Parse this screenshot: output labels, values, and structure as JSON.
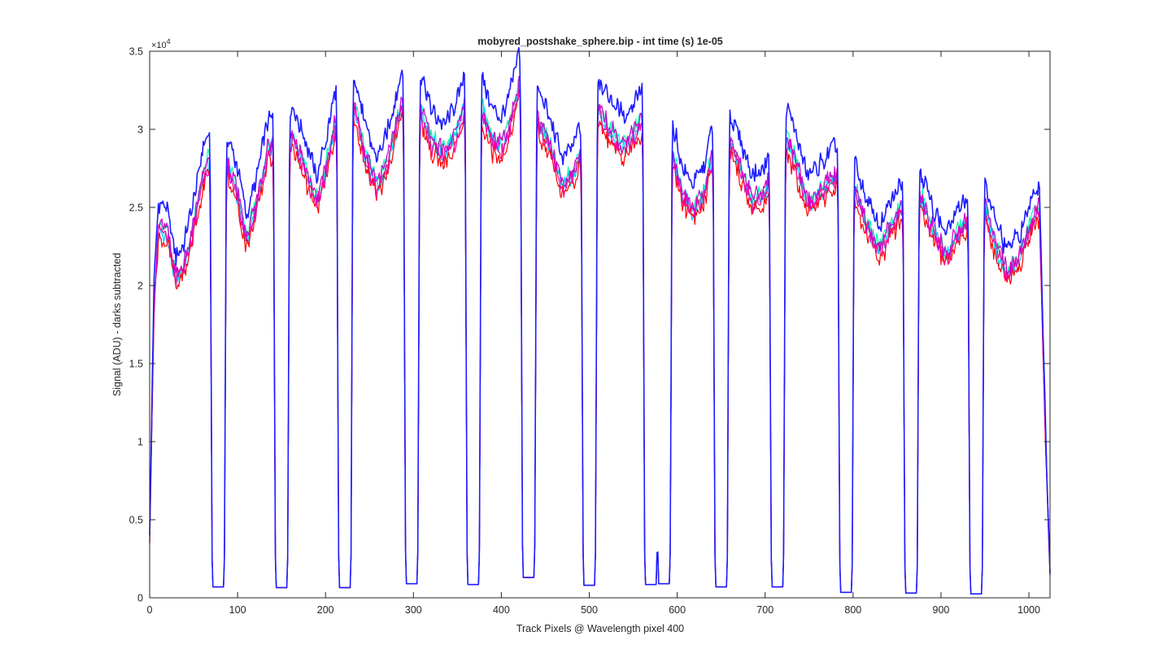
{
  "chart_data": {
    "type": "line",
    "title": "mobyred_postshake_sphere.bip - int time (s) 1e-05",
    "xlabel": "Track Pixels @ Wavelength pixel 400",
    "ylabel": "Signal (ADU) - darks subtracted",
    "y_exponent_label": "×10",
    "y_exponent_power": "4",
    "xlim": [
      0,
      1024
    ],
    "ylim": [
      0,
      3.5
    ],
    "y_multiplier": 10000,
    "x_ticks": [
      0,
      100,
      200,
      300,
      400,
      500,
      600,
      700,
      800,
      900,
      1000
    ],
    "x_tick_labels": [
      "0",
      "100",
      "200",
      "300",
      "400",
      "500",
      "600",
      "700",
      "800",
      "900",
      "1000"
    ],
    "y_ticks": [
      0,
      0.5,
      1,
      1.5,
      2,
      2.5,
      3,
      3.5
    ],
    "y_tick_labels": [
      "0",
      "0.5",
      "1",
      "1.5",
      "2",
      "2.5",
      "3",
      "3.5"
    ],
    "grid": false,
    "legend": "none",
    "colors": [
      "#1e1eff",
      "#00ffaa",
      "#00ccff",
      "#ff0000",
      "#ff0099",
      "#cc00cc"
    ],
    "series": [
      {
        "color_index": 0,
        "scale": 1.06
      },
      {
        "color_index": 1,
        "scale": 1.0
      },
      {
        "color_index": 2,
        "scale": 0.99
      },
      {
        "color_index": 3,
        "scale": 0.97
      },
      {
        "color_index": 4,
        "scale": 0.985
      },
      {
        "color_index": 5,
        "scale": 1.0
      }
    ],
    "gaps": [
      {
        "center": 78,
        "floor": 0.07
      },
      {
        "center": 150,
        "floor": 0.065
      },
      {
        "center": 222,
        "floor": 0.065
      },
      {
        "center": 298,
        "floor": 0.09
      },
      {
        "center": 368,
        "floor": 0.085
      },
      {
        "center": 431,
        "floor": 0.13
      },
      {
        "center": 500,
        "floor": 0.08
      },
      {
        "center": 570,
        "floor": 0.085
      },
      {
        "center": 585,
        "floor": 0.09
      },
      {
        "center": 650,
        "floor": 0.07
      },
      {
        "center": 714,
        "floor": 0.07
      },
      {
        "center": 792,
        "floor": 0.035
      },
      {
        "center": 866,
        "floor": 0.03
      },
      {
        "center": 940,
        "floor": 0.025
      }
    ],
    "envelope": [
      [
        0,
        0.4
      ],
      [
        5,
        1.9
      ],
      [
        10,
        2.38
      ],
      [
        20,
        2.35
      ],
      [
        30,
        2.05
      ],
      [
        40,
        2.15
      ],
      [
        50,
        2.4
      ],
      [
        60,
        2.7
      ],
      [
        66,
        2.8
      ],
      [
        88,
        2.8
      ],
      [
        100,
        2.6
      ],
      [
        110,
        2.3
      ],
      [
        120,
        2.5
      ],
      [
        135,
        2.9
      ],
      [
        163,
        2.95
      ],
      [
        175,
        2.8
      ],
      [
        190,
        2.55
      ],
      [
        200,
        2.75
      ],
      [
        212,
        3.08
      ],
      [
        234,
        3.15
      ],
      [
        245,
        2.85
      ],
      [
        258,
        2.65
      ],
      [
        270,
        2.8
      ],
      [
        285,
        3.15
      ],
      [
        308,
        3.15
      ],
      [
        320,
        2.95
      ],
      [
        335,
        2.85
      ],
      [
        350,
        3.0
      ],
      [
        358,
        3.18
      ],
      [
        378,
        3.15
      ],
      [
        390,
        2.95
      ],
      [
        400,
        2.9
      ],
      [
        410,
        3.05
      ],
      [
        420,
        3.3
      ],
      [
        443,
        3.05
      ],
      [
        455,
        2.9
      ],
      [
        470,
        2.65
      ],
      [
        483,
        2.75
      ],
      [
        492,
        2.9
      ],
      [
        510,
        3.15
      ],
      [
        525,
        3.0
      ],
      [
        540,
        2.9
      ],
      [
        555,
        3.05
      ],
      [
        565,
        3.1
      ],
      [
        594,
        2.9
      ],
      [
        606,
        2.6
      ],
      [
        618,
        2.5
      ],
      [
        630,
        2.6
      ],
      [
        642,
        2.9
      ],
      [
        658,
        2.95
      ],
      [
        670,
        2.8
      ],
      [
        685,
        2.55
      ],
      [
        700,
        2.6
      ],
      [
        712,
        2.9
      ],
      [
        725,
        2.95
      ],
      [
        735,
        2.8
      ],
      [
        748,
        2.55
      ],
      [
        760,
        2.6
      ],
      [
        775,
        2.7
      ],
      [
        784,
        2.72
      ],
      [
        802,
        2.65
      ],
      [
        815,
        2.4
      ],
      [
        830,
        2.25
      ],
      [
        845,
        2.4
      ],
      [
        858,
        2.55
      ],
      [
        876,
        2.6
      ],
      [
        888,
        2.4
      ],
      [
        905,
        2.2
      ],
      [
        920,
        2.35
      ],
      [
        932,
        2.45
      ],
      [
        948,
        2.55
      ],
      [
        960,
        2.3
      ],
      [
        975,
        2.1
      ],
      [
        990,
        2.2
      ],
      [
        1005,
        2.45
      ],
      [
        1012,
        2.5
      ],
      [
        1018,
        1.2
      ],
      [
        1024,
        0.15
      ]
    ]
  }
}
